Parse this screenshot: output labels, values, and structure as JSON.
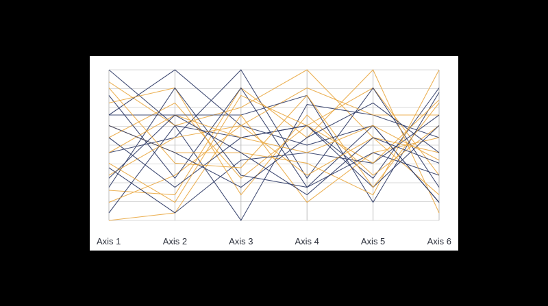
{
  "chart_data": {
    "type": "parallel-coordinates",
    "axes": [
      "Axis 1",
      "Axis 2",
      "Axis 3",
      "Axis 4",
      "Axis 5",
      "Axis 6"
    ],
    "ylim": [
      0,
      1
    ],
    "grid": true,
    "colors": {
      "background": "#000000",
      "panel": "#ffffff",
      "grid": "#d9d9d9",
      "axis": "#bdbdbd",
      "label": "#2b2f3a",
      "navy": "#2e3a66",
      "amber": "#e9a53a"
    },
    "series": [
      {
        "color": "navy",
        "values": [
          1.0,
          0.63,
          0.55,
          0.63,
          0.28,
          0.88
        ]
      },
      {
        "color": "amber",
        "values": [
          0.92,
          0.63,
          0.75,
          1.0,
          0.55,
          0.17
        ]
      },
      {
        "color": "navy",
        "values": [
          0.7,
          1.0,
          0.63,
          0.5,
          0.63,
          0.12
        ]
      },
      {
        "color": "amber",
        "values": [
          0.55,
          0.78,
          0.28,
          0.63,
          0.88,
          0.3
        ]
      },
      {
        "color": "navy",
        "values": [
          0.45,
          0.55,
          1.0,
          0.28,
          0.88,
          0.22
        ]
      },
      {
        "color": "amber",
        "values": [
          0.2,
          0.17,
          0.88,
          0.55,
          1.0,
          0.05
        ]
      },
      {
        "color": "navy",
        "values": [
          0.05,
          0.63,
          0.0,
          0.77,
          0.7,
          0.55
        ]
      },
      {
        "color": "amber",
        "values": [
          0.12,
          0.3,
          0.63,
          0.88,
          0.7,
          0.7
        ]
      },
      {
        "color": "navy",
        "values": [
          0.7,
          0.7,
          0.7,
          0.83,
          0.12,
          0.85
        ]
      },
      {
        "color": "amber",
        "values": [
          0.0,
          0.05,
          0.7,
          0.12,
          0.45,
          0.55
        ]
      },
      {
        "color": "navy",
        "values": [
          0.83,
          0.28,
          0.88,
          0.22,
          0.63,
          0.12
        ]
      },
      {
        "color": "amber",
        "values": [
          0.63,
          0.45,
          0.45,
          0.38,
          0.17,
          1.0
        ]
      },
      {
        "color": "navy",
        "values": [
          0.35,
          0.05,
          0.4,
          0.45,
          0.38,
          0.7
        ]
      },
      {
        "color": "amber",
        "values": [
          0.78,
          0.88,
          0.17,
          0.7,
          0.3,
          0.63
        ]
      },
      {
        "color": "navy",
        "values": [
          0.22,
          0.88,
          0.3,
          0.22,
          0.45,
          0.3
        ]
      },
      {
        "color": "amber",
        "values": [
          0.3,
          0.55,
          0.63,
          0.3,
          0.55,
          0.45
        ]
      },
      {
        "color": "navy",
        "values": [
          0.55,
          0.22,
          0.55,
          0.63,
          0.22,
          0.63
        ]
      },
      {
        "color": "amber",
        "values": [
          0.45,
          0.7,
          0.55,
          0.45,
          0.63,
          0.4
        ]
      },
      {
        "color": "navy",
        "values": [
          0.63,
          0.45,
          0.22,
          0.55,
          0.78,
          0.45
        ]
      },
      {
        "color": "amber",
        "values": [
          0.38,
          0.12,
          0.83,
          0.63,
          0.38,
          0.8
        ]
      },
      {
        "color": "navy",
        "values": [
          0.28,
          0.7,
          0.45,
          0.17,
          0.55,
          0.38
        ]
      },
      {
        "color": "amber",
        "values": [
          0.88,
          0.38,
          0.35,
          0.83,
          0.22,
          0.78
        ]
      }
    ]
  }
}
